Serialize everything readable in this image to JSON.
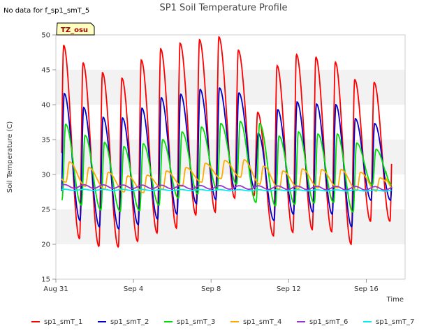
{
  "no_data_note": "No data for f_sp1_smT_5",
  "tz_label": "TZ_osu",
  "chart_data": {
    "type": "line",
    "title": "SP1 Soil Temperature Profile",
    "xlabel": "Time",
    "ylabel": "Soil Temperature (C)",
    "ylim": [
      15,
      50
    ],
    "yticks": [
      "15",
      "20",
      "25",
      "30",
      "35",
      "40",
      "45",
      "50"
    ],
    "xlim": [
      0,
      18
    ],
    "xticks": [
      {
        "value": 0,
        "label": "Aug 31"
      },
      {
        "value": 4,
        "label": "Sep 4"
      },
      {
        "value": 8,
        "label": "Sep 8"
      },
      {
        "value": 12,
        "label": "Sep 12"
      },
      {
        "value": 16,
        "label": "Sep 16"
      }
    ],
    "x_start": 0.3,
    "x_end": 17.3,
    "grid": "horizontal bands",
    "legend_position": "bottom",
    "series": [
      {
        "name": "sp1_smT_1",
        "color": "#ff0000",
        "peaks": [
          48.5,
          46.0,
          44.6,
          43.8,
          46.4,
          48.0,
          48.8,
          49.3,
          49.7,
          47.8,
          38.9,
          45.6,
          47.2,
          46.8,
          46.1,
          43.6,
          43.2
        ],
        "mins": [
          22.2,
          20.8,
          19.7,
          19.6,
          20.4,
          21.6,
          22.3,
          24.2,
          24.6,
          26.6,
          27.0,
          21.2,
          21.7,
          22.1,
          21.8,
          20.0,
          23.3
        ]
      },
      {
        "name": "sp1_smT_2",
        "color": "#0000cc",
        "peaks": [
          41.6,
          39.6,
          38.2,
          38.1,
          39.5,
          41.0,
          41.5,
          42.2,
          42.4,
          41.7,
          35.9,
          39.3,
          40.4,
          40.1,
          40.0,
          38.0,
          37.3
        ],
        "mins": [
          24.6,
          23.4,
          22.5,
          22.2,
          22.8,
          23.6,
          24.3,
          25.8,
          26.4,
          27.8,
          28.0,
          23.4,
          24.3,
          24.6,
          24.3,
          22.5,
          26.3
        ]
      },
      {
        "name": "sp1_smT_3",
        "color": "#00dd00",
        "peaks": [
          37.2,
          35.6,
          34.6,
          34.0,
          34.4,
          35.0,
          36.1,
          36.8,
          37.3,
          37.6,
          37.3,
          35.5,
          36.1,
          35.8,
          35.8,
          34.5,
          33.6
        ],
        "mins": [
          26.4,
          25.6,
          24.9,
          24.7,
          24.8,
          25.6,
          26.6,
          27.2,
          27.8,
          28.6,
          26.0,
          25.5,
          25.7,
          25.9,
          26.0,
          24.6,
          28.5
        ]
      },
      {
        "name": "sp1_smT_4",
        "color": "#ffaa00",
        "peaks": [
          31.8,
          31.0,
          30.3,
          29.8,
          29.9,
          30.5,
          31.0,
          31.6,
          32.0,
          32.1,
          31.2,
          30.5,
          30.8,
          30.7,
          30.7,
          30.3,
          29.5
        ],
        "mins": [
          28.9,
          28.3,
          27.9,
          27.5,
          27.4,
          27.9,
          28.3,
          28.9,
          29.4,
          29.6,
          28.6,
          27.9,
          28.0,
          28.1,
          28.1,
          27.7,
          27.6
        ]
      },
      {
        "name": "sp1_smT_6",
        "color": "#9933cc",
        "start": 28.3,
        "end": 28.0,
        "amp": 0.25
      },
      {
        "name": "sp1_smT_7",
        "color": "#00eeee",
        "start": 27.8,
        "end": 27.7,
        "amp": 0.08
      }
    ]
  }
}
